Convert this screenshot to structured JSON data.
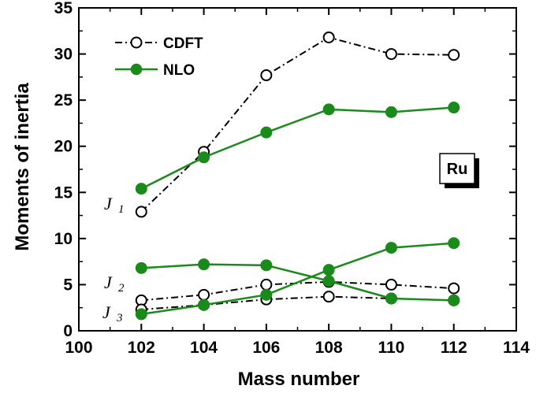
{
  "chart_data": {
    "type": "line",
    "xlabel": "Mass number",
    "ylabel": "Moments of inertia",
    "xlim": [
      100,
      114
    ],
    "ylim": [
      0,
      35
    ],
    "xticks": [
      100,
      102,
      104,
      106,
      108,
      110,
      112,
      114
    ],
    "yticks": [
      0,
      5,
      10,
      15,
      20,
      25,
      30,
      35
    ],
    "legend_position": "top-left",
    "badge": "Ru",
    "annotations": [
      {
        "symbol": "J",
        "subscript": "1"
      },
      {
        "symbol": "J",
        "subscript": "2"
      },
      {
        "symbol": "J",
        "subscript": "3"
      }
    ],
    "legend": [
      {
        "name": "CDFT",
        "style": "dash-dot",
        "marker": "open-circle",
        "color": "#000000"
      },
      {
        "name": "NLO",
        "style": "solid",
        "marker": "filled-circle",
        "color": "#1a8a1a"
      }
    ],
    "series": [
      {
        "group": "CDFT",
        "moment": "J1",
        "x": [
          102,
          104,
          106,
          108,
          110,
          112
        ],
        "y": [
          12.9,
          19.4,
          27.7,
          31.8,
          30.0,
          29.9
        ]
      },
      {
        "group": "CDFT",
        "moment": "J2",
        "x": [
          102,
          104,
          106,
          108,
          110,
          112
        ],
        "y": [
          3.3,
          3.9,
          5.0,
          5.3,
          5.0,
          4.6
        ]
      },
      {
        "group": "CDFT",
        "moment": "J3",
        "x": [
          102,
          104,
          106,
          108,
          110,
          112
        ],
        "y": [
          2.3,
          2.8,
          3.4,
          3.7,
          3.5,
          3.3
        ]
      },
      {
        "group": "NLO",
        "moment": "J1",
        "x": [
          102,
          104,
          106,
          108,
          110,
          112
        ],
        "y": [
          15.4,
          18.8,
          21.5,
          24.0,
          23.7,
          24.2
        ]
      },
      {
        "group": "NLO",
        "moment": "J2",
        "x": [
          102,
          104,
          106,
          108,
          110,
          112
        ],
        "y": [
          6.8,
          7.2,
          7.1,
          5.4,
          3.5,
          3.3
        ]
      },
      {
        "group": "NLO",
        "moment": "J3",
        "x": [
          102,
          104,
          106,
          108,
          110,
          112
        ],
        "y": [
          1.8,
          2.8,
          3.9,
          6.6,
          9.0,
          9.5
        ]
      }
    ]
  }
}
